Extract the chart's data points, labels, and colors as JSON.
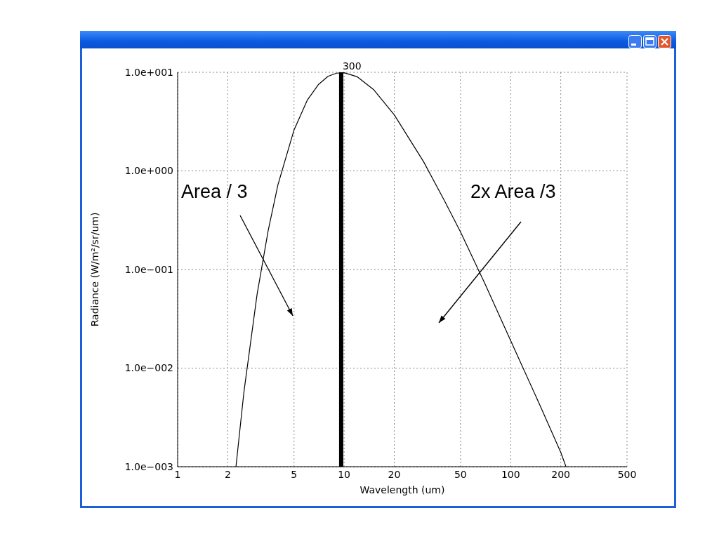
{
  "chart_data": {
    "type": "line",
    "xlabel": "Wavelength (um)",
    "ylabel": "Radiance (W/m²/sr/um)",
    "x": [
      2.24,
      2.5,
      3,
      3.5,
      4,
      5,
      6,
      7,
      8,
      9,
      10,
      12,
      15,
      20,
      30,
      40,
      50,
      70,
      100,
      150,
      200,
      215
    ],
    "series": [
      {
        "color": "#000000",
        "values": [
          0.001,
          0.0057,
          0.056,
          0.25,
          0.72,
          2.6,
          5.2,
          7.5,
          9.1,
          9.8,
          9.9,
          9.0,
          6.7,
          3.7,
          1.24,
          0.5,
          0.24,
          0.072,
          0.019,
          0.0042,
          0.0014,
          0.001
        ]
      }
    ],
    "log": "xy",
    "xlim": [
      1,
      500
    ],
    "xticks": [
      1,
      2,
      5,
      10,
      20,
      50,
      100,
      200,
      500
    ],
    "ylim": [
      0.001,
      10
    ],
    "yticks": [
      {
        "value": 0.001,
        "label": "1.0e−003"
      },
      {
        "value": 0.01,
        "label": "1.0e−002"
      },
      {
        "value": 0.1,
        "label": "1.0e−001"
      },
      {
        "value": 1,
        "label": "1.0e+000"
      },
      {
        "value": 10,
        "label": "1.0e+001"
      }
    ],
    "grid": true,
    "marker": "none",
    "line_style": "solid",
    "ref_lines": [
      {
        "axis": "x",
        "value": 9.6,
        "color": "#000000"
      }
    ],
    "annotations": [
      "Area / 3",
      "2x Area /3",
      {
        "text": "300",
        "x": 9.6,
        "y": 10
      }
    ]
  }
}
